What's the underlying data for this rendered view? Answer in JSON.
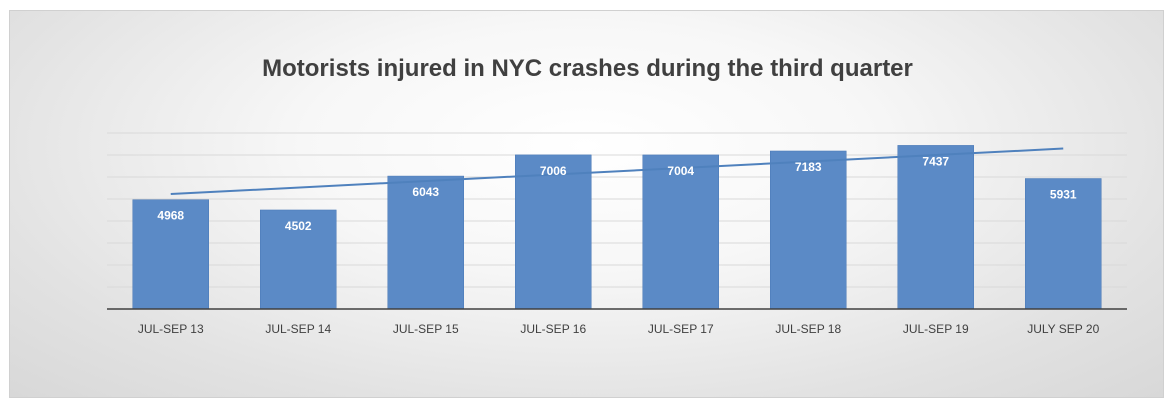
{
  "chart_data": {
    "type": "bar",
    "title": "Motorists injured in NYC crashes during the third quarter",
    "categories": [
      "JUL-SEP 13",
      "JUL-SEP 14",
      "JUL-SEP 15",
      "JUL-SEP 16",
      "JUL-SEP 17",
      "JUL-SEP 18",
      "JUL-SEP 19",
      "JULY SEP 20"
    ],
    "series": [
      {
        "values": [
          4968,
          4502,
          6043,
          7006,
          7004,
          7183,
          7437,
          5931
        ]
      }
    ],
    "trendline": {
      "type": "linear"
    },
    "data_labels": true,
    "ylim": [
      0,
      8000
    ],
    "grid": true,
    "y_axis_labels_shown": false,
    "legend": "none",
    "colors": {
      "bar": "#5b8ac6",
      "bar_edge": "#4a78b5",
      "trendline": "#4f81bd",
      "grid": "#d9d9d9",
      "axis": "#404040"
    }
  }
}
